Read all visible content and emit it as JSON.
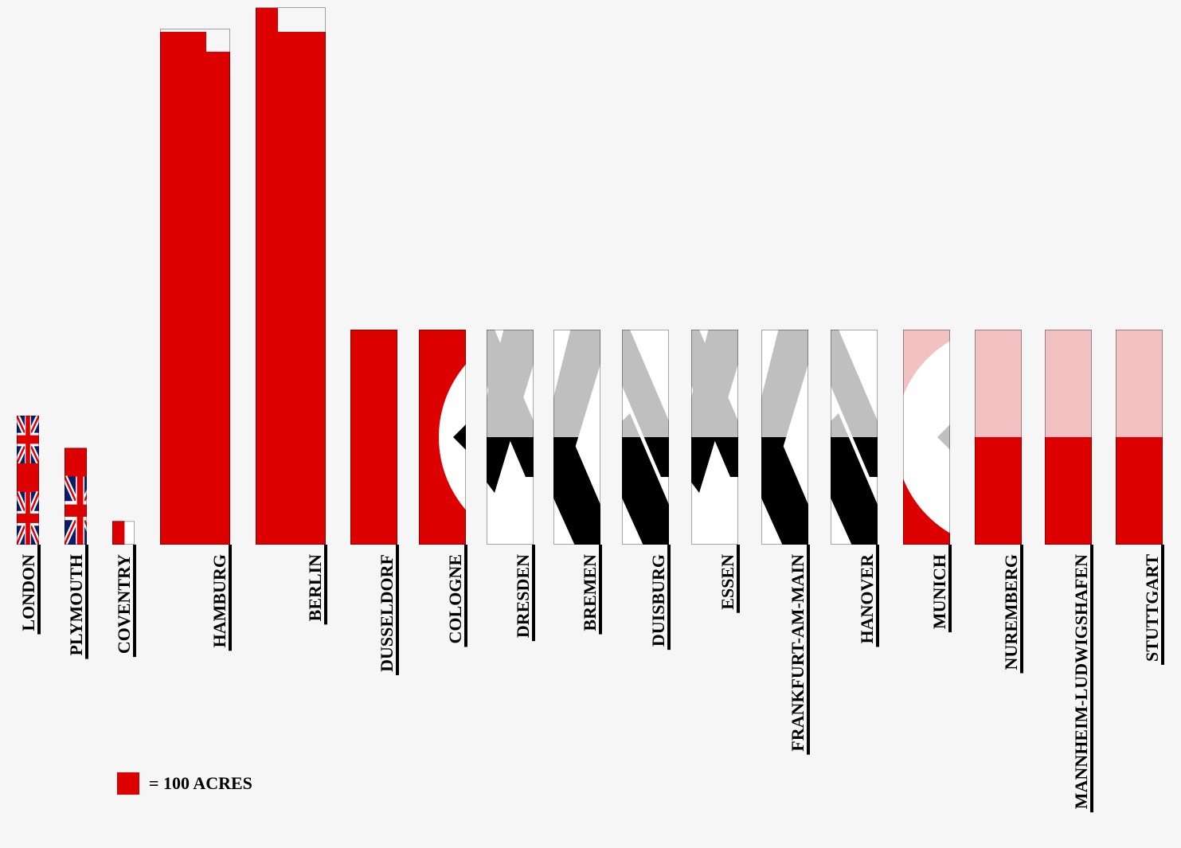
{
  "chart_data": {
    "type": "bar",
    "unit_note": "each bar height in acres; fill colour is the legend unit",
    "categories": [
      "LONDON",
      "PLYMOUTH",
      "COVENTRY",
      "HAMBURG",
      "BERLIN",
      "DUSSELDORF",
      "COLOGNE",
      "DRESDEN",
      "BREMEN",
      "DUISBURG",
      "ESSEN",
      "FRANKFURT-AM-MAIN",
      "HANOVER",
      "MUNICH",
      "NUREMBERG",
      "MANNHEIM-LUDWIGSHAFEN",
      "STUTTGART"
    ],
    "values": [
      600,
      450,
      110,
      2400,
      2500,
      1000,
      1000,
      1000,
      1000,
      1000,
      1000,
      1000,
      1000,
      1000,
      1000,
      1000,
      1000
    ],
    "fills": [
      "uk-flag",
      "uk-flag",
      "red-white",
      "red",
      "red",
      "red",
      "nazi-flag",
      "swastika",
      "swastika",
      "swastika",
      "swastika",
      "swastika",
      "swastika",
      "nazi-flag",
      "red",
      "red",
      "red"
    ],
    "legend": {
      "label": "= 100 ACRES",
      "unit_acres": 100
    },
    "colors": {
      "red": "#dd0000",
      "light_red": "#f2c2c2",
      "grey": "#c0c0c0",
      "black": "#000000",
      "white": "#ffffff",
      "navy": "#0a1b6e",
      "background": "#f6f6f6"
    }
  }
}
